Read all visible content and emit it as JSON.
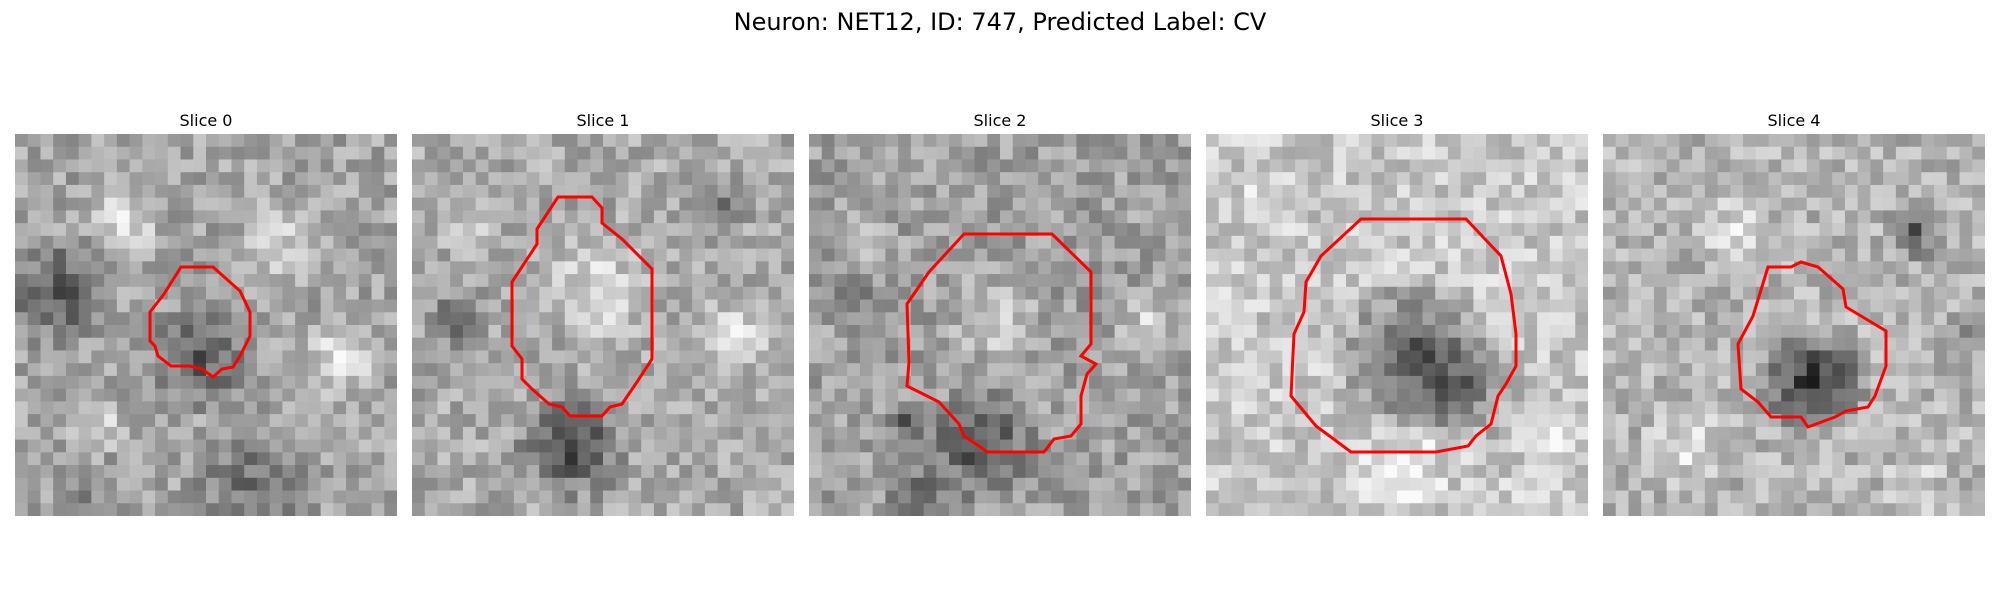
{
  "figure": {
    "title": "Neuron: NET12, ID: 747, Predicted Label: CV",
    "contour_color": "#ff0000"
  },
  "slices": [
    {
      "title": "Slice 0"
    },
    {
      "title": "Slice 1"
    },
    {
      "title": "Slice 2"
    },
    {
      "title": "Slice 3"
    },
    {
      "title": "Slice 4"
    }
  ]
}
